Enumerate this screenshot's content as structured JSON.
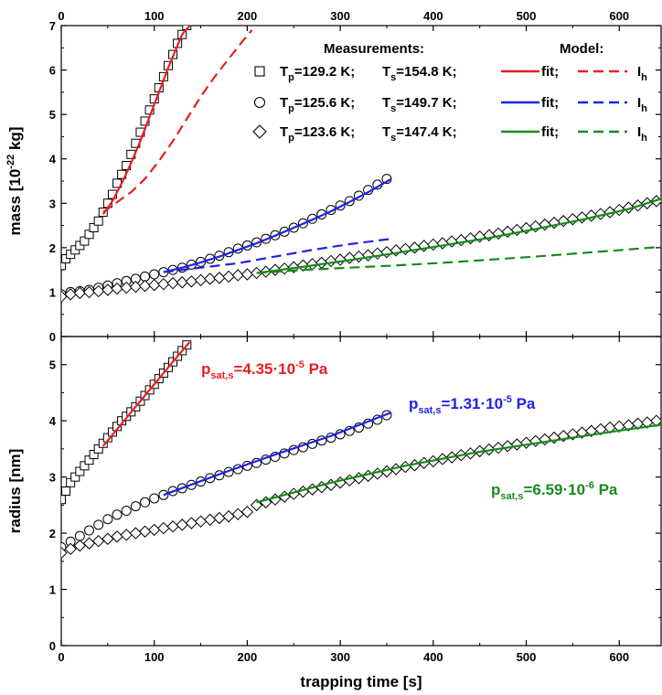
{
  "chart_data": [
    {
      "type": "scatter",
      "panel": "top",
      "ylabel": "mass [10-22 kg]",
      "ylabel_parts": {
        "main": "mass [10",
        "exp": "-22",
        "tail": " kg]"
      },
      "xlabel": "",
      "xlim": [
        0,
        645
      ],
      "ylim": [
        0,
        7
      ],
      "x_ticks": [
        "0",
        "100",
        "200",
        "300",
        "400",
        "500",
        "600"
      ],
      "y_ticks": [
        "0",
        "1",
        "2",
        "3",
        "4",
        "5",
        "6",
        "7"
      ],
      "top_ticks": [
        "0",
        "100",
        "200",
        "300",
        "400",
        "500",
        "600"
      ],
      "grid": false,
      "legend": {
        "header_measurements": "Measurements:",
        "header_model": "Model:",
        "rows": [
          {
            "marker": "square",
            "tp_label": "T",
            "tp_sub": "p",
            "tp_value": "=129.2 K;",
            "ts_label": "T",
            "ts_sub": "s",
            "ts_value": "=154.8 K;",
            "fit_label": "fit;",
            "ih_label": "I",
            "ih_sub": "h",
            "color": "#e8201f"
          },
          {
            "marker": "circle",
            "tp_label": "T",
            "tp_sub": "p",
            "tp_value": "=125.6 K;",
            "ts_label": "T",
            "ts_sub": "s",
            "ts_value": "=149.7 K;",
            "fit_label": "fit;",
            "ih_label": "I",
            "ih_sub": "h",
            "color": "#1f22e6"
          },
          {
            "marker": "diamond",
            "tp_label": "T",
            "tp_sub": "p",
            "tp_value": "=123.6 K;",
            "ts_label": "T",
            "ts_sub": "s",
            "ts_value": "=147.4 K;",
            "fit_label": "fit;",
            "ih_label": "I",
            "ih_sub": "h",
            "color": "#1a8a1a"
          }
        ]
      },
      "series": [
        {
          "name": "T_p=129.2 K; T_s=154.8 K; measurements",
          "marker": "square",
          "x": [
            0,
            5,
            10,
            15,
            20,
            25,
            30,
            35,
            40,
            45,
            50,
            55,
            60,
            65,
            70,
            75,
            80,
            85,
            90,
            95,
            100,
            105,
            110,
            115,
            120,
            125,
            130,
            135
          ],
          "y": [
            1.6,
            1.75,
            1.85,
            1.95,
            2.05,
            2.15,
            2.3,
            2.45,
            2.6,
            2.8,
            3.0,
            3.2,
            3.45,
            3.65,
            3.85,
            4.1,
            4.35,
            4.6,
            4.85,
            5.1,
            5.35,
            5.6,
            5.85,
            6.1,
            6.35,
            6.6,
            6.8,
            7.0
          ]
        },
        {
          "name": "T_p=129.2 K; T_s=154.8 K; fit",
          "line": "solid",
          "color": "#e8201f",
          "x": [
            45,
            55,
            65,
            75,
            85,
            95,
            105,
            115,
            125,
            130,
            138
          ],
          "y": [
            2.75,
            3.05,
            3.45,
            3.9,
            4.4,
            4.95,
            5.5,
            6.05,
            6.55,
            6.8,
            7.0
          ]
        },
        {
          "name": "T_p=129.2 K; T_s=154.8 K; Ih",
          "line": "dashed",
          "color": "#e8201f",
          "x": [
            45,
            55,
            65,
            75,
            90,
            105,
            120,
            135,
            150,
            165,
            180,
            195,
            205
          ],
          "y": [
            2.8,
            2.95,
            3.1,
            3.25,
            3.55,
            3.95,
            4.4,
            4.9,
            5.4,
            5.85,
            6.25,
            6.65,
            6.9
          ]
        },
        {
          "name": "T_p=125.6 K; T_s=149.7 K; measurements",
          "marker": "circle",
          "x": [
            0,
            10,
            20,
            30,
            40,
            50,
            60,
            70,
            80,
            90,
            100,
            110,
            120,
            130,
            140,
            150,
            160,
            170,
            180,
            190,
            200,
            210,
            220,
            230,
            240,
            250,
            260,
            270,
            280,
            290,
            300,
            310,
            320,
            330,
            340,
            350
          ],
          "y": [
            0.95,
            1.0,
            1.02,
            1.05,
            1.1,
            1.15,
            1.2,
            1.25,
            1.3,
            1.35,
            1.4,
            1.45,
            1.5,
            1.55,
            1.62,
            1.68,
            1.75,
            1.82,
            1.9,
            1.98,
            2.05,
            2.12,
            2.2,
            2.28,
            2.36,
            2.45,
            2.55,
            2.65,
            2.75,
            2.85,
            2.95,
            3.05,
            3.17,
            3.3,
            3.42,
            3.55
          ]
        },
        {
          "name": "T_p=125.6 K; T_s=149.7 K; fit",
          "line": "solid",
          "color": "#1f22e6",
          "x": [
            110,
            130,
            150,
            170,
            190,
            210,
            230,
            250,
            270,
            290,
            310,
            330,
            355
          ],
          "y": [
            1.45,
            1.55,
            1.67,
            1.8,
            1.95,
            2.1,
            2.27,
            2.45,
            2.63,
            2.82,
            3.03,
            3.25,
            3.55
          ]
        },
        {
          "name": "T_p=125.6 K; T_s=149.7 K; Ih",
          "line": "dashed",
          "color": "#1f22e6",
          "x": [
            110,
            150,
            190,
            230,
            270,
            310,
            355
          ],
          "y": [
            1.45,
            1.55,
            1.65,
            1.8,
            1.95,
            2.08,
            2.2
          ]
        },
        {
          "name": "T_p=123.6 K; T_s=147.4 K; measurements",
          "marker": "diamond",
          "x": [
            0,
            10,
            20,
            30,
            40,
            50,
            60,
            70,
            80,
            90,
            100,
            110,
            120,
            130,
            140,
            150,
            160,
            170,
            180,
            190,
            200,
            210,
            220,
            230,
            240,
            250,
            260,
            270,
            280,
            290,
            300,
            310,
            320,
            330,
            340,
            350,
            360,
            370,
            380,
            390,
            400,
            410,
            420,
            430,
            440,
            450,
            460,
            470,
            480,
            490,
            500,
            510,
            520,
            530,
            540,
            550,
            560,
            570,
            580,
            590,
            600,
            610,
            620,
            630,
            640
          ],
          "y": [
            0.9,
            0.95,
            0.98,
            1.0,
            1.02,
            1.05,
            1.08,
            1.1,
            1.12,
            1.14,
            1.16,
            1.18,
            1.2,
            1.22,
            1.24,
            1.27,
            1.3,
            1.32,
            1.35,
            1.38,
            1.4,
            1.43,
            1.46,
            1.5,
            1.53,
            1.56,
            1.6,
            1.63,
            1.66,
            1.7,
            1.73,
            1.77,
            1.8,
            1.83,
            1.87,
            1.9,
            1.94,
            1.97,
            2.0,
            2.04,
            2.07,
            2.1,
            2.14,
            2.17,
            2.21,
            2.25,
            2.28,
            2.32,
            2.36,
            2.4,
            2.44,
            2.48,
            2.52,
            2.56,
            2.6,
            2.64,
            2.68,
            2.72,
            2.76,
            2.8,
            2.85,
            2.9,
            2.95,
            3.0,
            3.05
          ]
        },
        {
          "name": "T_p=123.6 K; T_s=147.4 K; fit",
          "line": "solid",
          "color": "#1a8a1a",
          "x": [
            210,
            260,
            310,
            360,
            410,
            460,
            510,
            560,
            610,
            645
          ],
          "y": [
            1.43,
            1.57,
            1.72,
            1.88,
            2.05,
            2.22,
            2.42,
            2.63,
            2.87,
            3.1
          ]
        },
        {
          "name": "T_p=123.6 K; T_s=147.4 K; Ih",
          "line": "dashed",
          "color": "#1a8a1a",
          "x": [
            210,
            260,
            310,
            360,
            410,
            460,
            510,
            560,
            610,
            645
          ],
          "y": [
            1.43,
            1.5,
            1.55,
            1.6,
            1.66,
            1.73,
            1.8,
            1.88,
            1.96,
            2.02
          ]
        }
      ]
    },
    {
      "type": "scatter",
      "panel": "bottom",
      "ylabel": "radius [nm]",
      "xlabel": "trapping time [s]",
      "xlim": [
        0,
        645
      ],
      "ylim": [
        0,
        5.5
      ],
      "x_ticks": [
        "0",
        "100",
        "200",
        "300",
        "400",
        "500",
        "600"
      ],
      "y_ticks": [
        "0",
        "1",
        "2",
        "3",
        "4",
        "5"
      ],
      "grid": false,
      "annotations": [
        {
          "label": "p",
          "sub": "sat,s",
          "value": "=4.35",
          "dot": "·",
          "mant": "10",
          "exp": "-5",
          "unit": " Pa",
          "color": "#e8201f"
        },
        {
          "label": "p",
          "sub": "sat,s",
          "value": "=1.31",
          "dot": "·",
          "mant": "10",
          "exp": "-5",
          "unit": " Pa",
          "color": "#1f22e6"
        },
        {
          "label": "p",
          "sub": "sat,s",
          "value": "=6.59",
          "dot": "·",
          "mant": "10",
          "exp": "-6",
          "unit": " Pa",
          "color": "#1a8a1a"
        }
      ],
      "series": [
        {
          "name": "T_p=129.2 K; T_s=154.8 K; measurements",
          "marker": "square",
          "x": [
            0,
            5,
            10,
            15,
            20,
            25,
            30,
            35,
            40,
            45,
            50,
            55,
            60,
            65,
            70,
            75,
            80,
            85,
            90,
            95,
            100,
            105,
            110,
            115,
            120,
            125,
            130,
            135
          ],
          "y": [
            2.6,
            2.75,
            2.9,
            3.0,
            3.1,
            3.2,
            3.3,
            3.4,
            3.5,
            3.6,
            3.7,
            3.8,
            3.9,
            4.0,
            4.08,
            4.16,
            4.25,
            4.35,
            4.45,
            4.55,
            4.65,
            4.75,
            4.85,
            4.95,
            5.05,
            5.15,
            5.25,
            5.35
          ]
        },
        {
          "name": "T_p=129.2 K; T_s=154.8 K; fit",
          "line": "solid",
          "color": "#e8201f",
          "x": [
            45,
            70,
            95,
            120,
            138
          ],
          "y": [
            3.55,
            4.05,
            4.55,
            5.05,
            5.4
          ]
        },
        {
          "name": "T_p=125.6 K; T_s=149.7 K; measurements",
          "marker": "circle",
          "x": [
            0,
            10,
            20,
            30,
            40,
            50,
            60,
            70,
            80,
            90,
            100,
            110,
            120,
            130,
            140,
            150,
            160,
            170,
            180,
            190,
            200,
            210,
            220,
            230,
            240,
            250,
            260,
            270,
            280,
            290,
            300,
            310,
            320,
            330,
            340,
            350
          ],
          "y": [
            1.75,
            1.85,
            1.95,
            2.05,
            2.15,
            2.25,
            2.33,
            2.4,
            2.48,
            2.55,
            2.62,
            2.68,
            2.75,
            2.8,
            2.86,
            2.92,
            2.98,
            3.03,
            3.09,
            3.14,
            3.2,
            3.25,
            3.31,
            3.36,
            3.42,
            3.48,
            3.53,
            3.59,
            3.65,
            3.7,
            3.76,
            3.82,
            3.88,
            3.95,
            4.02,
            4.1
          ]
        },
        {
          "name": "T_p=125.6 K; T_s=149.7 K; fit",
          "line": "solid",
          "color": "#1f22e6",
          "x": [
            110,
            170,
            230,
            290,
            355
          ],
          "y": [
            2.68,
            3.05,
            3.4,
            3.73,
            4.15
          ]
        },
        {
          "name": "T_p=123.6 K; T_s=147.4 K; measurements",
          "marker": "diamond",
          "x": [
            0,
            10,
            20,
            30,
            40,
            50,
            60,
            70,
            80,
            90,
            100,
            110,
            120,
            130,
            140,
            150,
            160,
            170,
            180,
            190,
            200,
            210,
            220,
            230,
            240,
            250,
            260,
            270,
            280,
            290,
            300,
            310,
            320,
            330,
            340,
            350,
            360,
            370,
            380,
            390,
            400,
            410,
            420,
            430,
            440,
            450,
            460,
            470,
            480,
            490,
            500,
            510,
            520,
            530,
            540,
            550,
            560,
            570,
            580,
            590,
            600,
            610,
            620,
            630,
            640
          ],
          "y": [
            1.65,
            1.72,
            1.78,
            1.82,
            1.86,
            1.9,
            1.94,
            1.97,
            2.0,
            2.03,
            2.06,
            2.09,
            2.12,
            2.15,
            2.18,
            2.21,
            2.24,
            2.27,
            2.3,
            2.34,
            2.38,
            2.5,
            2.55,
            2.6,
            2.65,
            2.7,
            2.74,
            2.78,
            2.82,
            2.86,
            2.9,
            2.94,
            2.98,
            3.02,
            3.06,
            3.1,
            3.14,
            3.18,
            3.21,
            3.25,
            3.28,
            3.32,
            3.35,
            3.39,
            3.42,
            3.46,
            3.49,
            3.52,
            3.55,
            3.58,
            3.61,
            3.64,
            3.67,
            3.7,
            3.73,
            3.76,
            3.79,
            3.82,
            3.85,
            3.88,
            3.9,
            3.92,
            3.95,
            3.97,
            4.0
          ]
        },
        {
          "name": "T_p=123.6 K; T_s=147.4 K; fit",
          "line": "solid",
          "color": "#1a8a1a",
          "x": [
            210,
            290,
            370,
            450,
            530,
            610,
            645
          ],
          "y": [
            2.55,
            2.9,
            3.2,
            3.45,
            3.65,
            3.85,
            3.93
          ]
        }
      ]
    }
  ]
}
